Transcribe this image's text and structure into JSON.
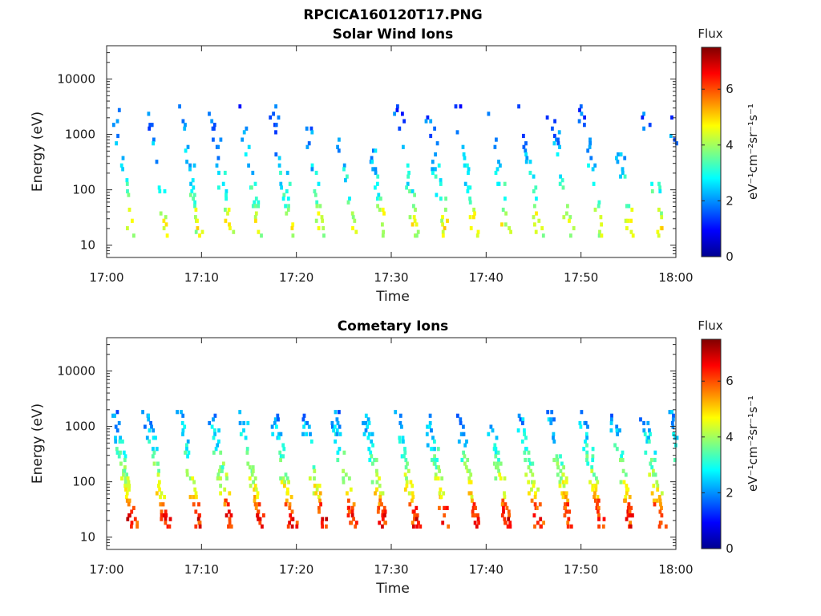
{
  "figure_title": "RPCICA160120T17.PNG",
  "colormap": [
    "#00008f",
    "#0000ff",
    "#0080ff",
    "#00ffff",
    "#80ff80",
    "#ffff00",
    "#ff8000",
    "#ff0000",
    "#800000"
  ],
  "chart_data": [
    {
      "type": "heatmap",
      "title": "Solar Wind Ions",
      "xlabel": "Time",
      "ylabel": "Energy (eV)",
      "xticks": [
        "17:00",
        "17:10",
        "17:20",
        "17:30",
        "17:40",
        "17:50",
        "18:00"
      ],
      "xlim_minutes": [
        0,
        60
      ],
      "yticks": [
        "10",
        "100",
        "1000",
        "10000"
      ],
      "ylim_eV": [
        6,
        40000
      ],
      "yscale": "log",
      "colorbar": {
        "label": "Flux",
        "units_label": "eV⁻¹cm⁻²sr⁻¹s⁻¹",
        "ticks": [
          "0",
          "2",
          "4",
          "6"
        ],
        "range": [
          0,
          7.5
        ]
      },
      "sweep_start_minutes": [
        0.8,
        4.3,
        7.8,
        11.0,
        14.2,
        17.6,
        20.8,
        24.0,
        27.3,
        30.6,
        33.8,
        37.0,
        40.3,
        43.6,
        46.8,
        50.1,
        53.3,
        56.6,
        59.5
      ],
      "flux_peak": 4.3,
      "flux_floor": 1.5,
      "max_energy_eV": 3000,
      "density": 0.45
    },
    {
      "type": "heatmap",
      "title": "Cometary Ions",
      "xlabel": "Time",
      "ylabel": "Energy (eV)",
      "xticks": [
        "17:00",
        "17:10",
        "17:20",
        "17:30",
        "17:40",
        "17:50",
        "18:00"
      ],
      "xlim_minutes": [
        0,
        60
      ],
      "yticks": [
        "10",
        "100",
        "1000",
        "10000"
      ],
      "ylim_eV": [
        6,
        40000
      ],
      "yscale": "log",
      "colorbar": {
        "label": "Flux",
        "units_label": "eV⁻¹cm⁻²sr⁻¹s⁻¹",
        "ticks": [
          "0",
          "2",
          "4",
          "6"
        ],
        "range": [
          0,
          7.5
        ]
      },
      "sweep_start_minutes": [
        0.8,
        4.3,
        7.8,
        11.0,
        14.2,
        17.6,
        20.8,
        24.0,
        27.3,
        30.6,
        33.8,
        37.0,
        40.3,
        43.6,
        46.8,
        50.1,
        53.3,
        56.6,
        59.5
      ],
      "flux_peak": 6.5,
      "flux_floor": 2.0,
      "max_energy_eV": 1700,
      "density": 0.85
    }
  ]
}
